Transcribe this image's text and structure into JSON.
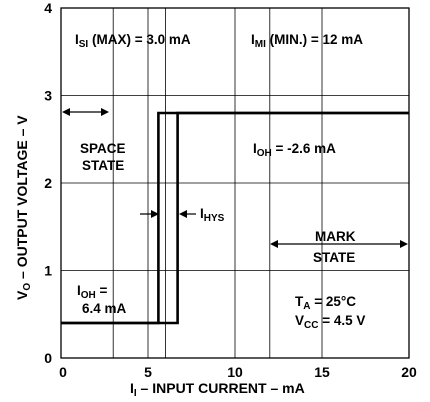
{
  "chart_data": {
    "type": "line",
    "xlabel_main": "I",
    "xlabel_sub": "I",
    "xlabel_rest": " – INPUT CURRENT – mA",
    "ylabel_main": "V",
    "ylabel_sub": "O",
    "ylabel_rest": " – OUTPUT VOLTAGE – V",
    "xlim": [
      0,
      20
    ],
    "ylim": [
      0,
      4
    ],
    "x_ticks": [
      "0",
      "5",
      "10",
      "15",
      "20"
    ],
    "y_ticks": [
      "0",
      "1",
      "2",
      "3",
      "4"
    ],
    "grid": true,
    "x_minor_gridlines": [
      3,
      6,
      12
    ],
    "series": [
      {
        "points": [
          [
            0,
            0.4
          ],
          [
            5.6,
            0.4
          ],
          [
            5.6,
            2.8
          ],
          [
            20,
            2.8
          ]
        ]
      },
      {
        "points": [
          [
            0,
            0.4
          ],
          [
            6.7,
            0.4
          ],
          [
            6.7,
            2.8
          ],
          [
            20,
            2.8
          ]
        ]
      }
    ],
    "annotations": {
      "isi": {
        "main": "I",
        "sub": "SI",
        "rest": " (MAX) = 3.0 mA"
      },
      "imi": {
        "main": "I",
        "sub": "MI",
        "rest": " (MIN.) = 12 mA"
      },
      "space_line1": "SPACE",
      "space_line2": "STATE",
      "ioh_high": {
        "main": "I",
        "sub": "OH",
        "rest": " = -2.6 mA"
      },
      "ihys": {
        "main": "I",
        "sub": "HYS"
      },
      "mark_line1": "MARK",
      "mark_line2": "STATE",
      "ioh_low": {
        "main": "I",
        "sub": "OH",
        "rest": " = ",
        "line2": "6.4 mA"
      },
      "ta": {
        "main": "T",
        "sub": "A",
        "rest": " = 25°C"
      },
      "vcc": {
        "main": "V",
        "sub": "CC",
        "rest": " = 4.5 V"
      }
    }
  }
}
